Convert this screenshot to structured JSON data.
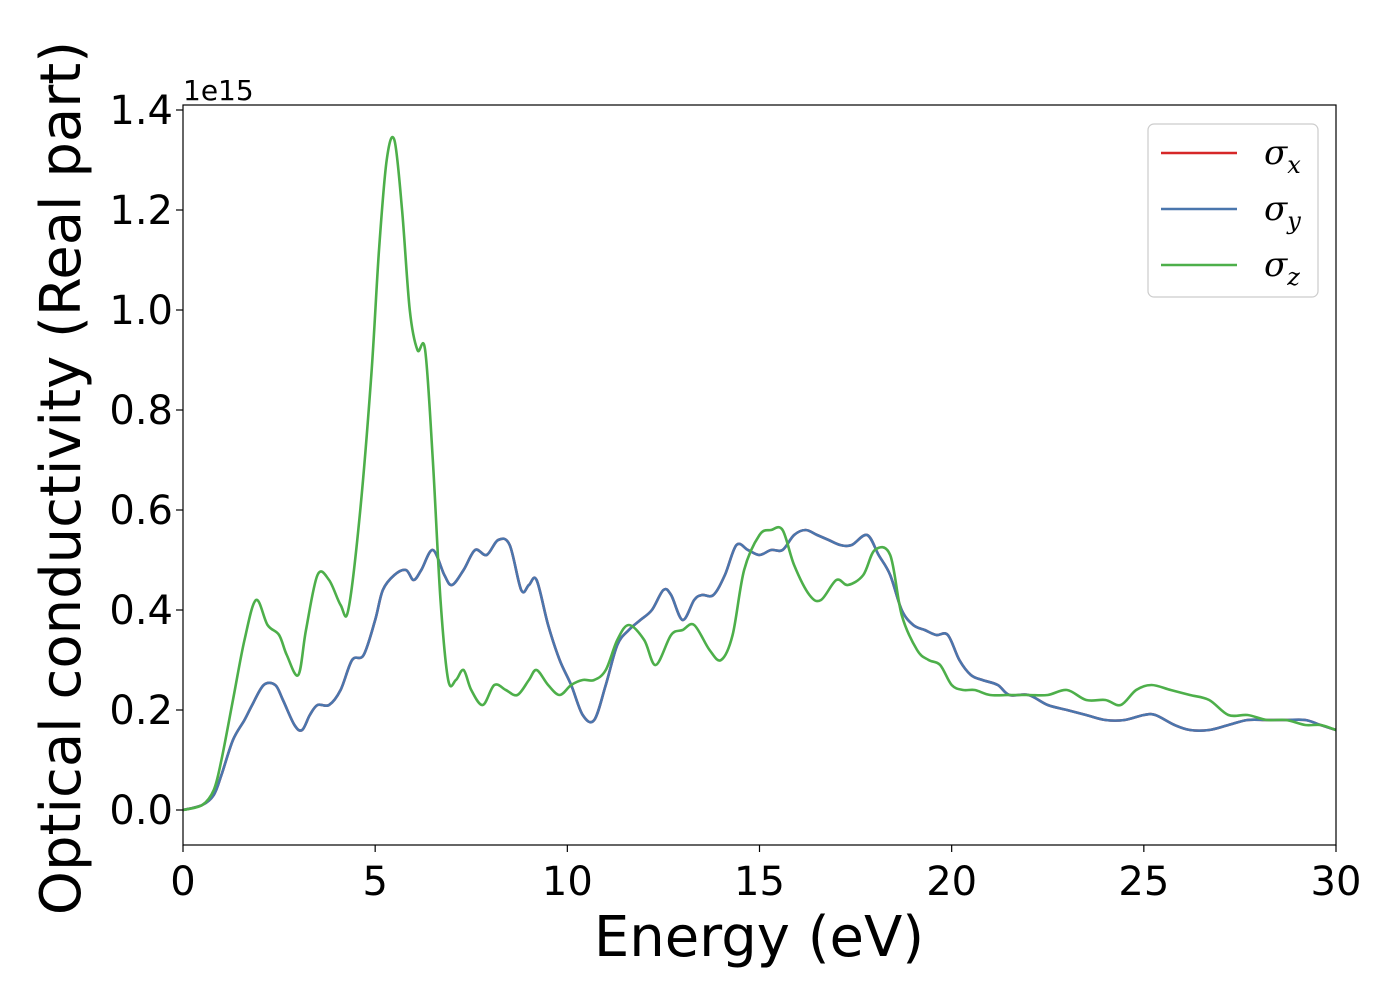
{
  "chart_data": {
    "type": "line",
    "xlabel": "Energy (eV)",
    "ylabel": "Optical conductivity (Real part)",
    "y_offset_label": "1e15",
    "xlim": [
      0,
      30
    ],
    "ylim": [
      -0.07,
      1.41
    ],
    "x_ticks": [
      0,
      5,
      10,
      15,
      20,
      25,
      30
    ],
    "x_tick_labels": [
      "0",
      "5",
      "10",
      "15",
      "20",
      "25",
      "30"
    ],
    "y_ticks": [
      0.0,
      0.2,
      0.4,
      0.6,
      0.8,
      1.0,
      1.2,
      1.4
    ],
    "y_tick_labels": [
      "0.0",
      "0.2",
      "0.4",
      "0.6",
      "0.8",
      "1.0",
      "1.2",
      "1.4"
    ],
    "grid": false,
    "legend_position": "top-right",
    "series": [
      {
        "name": "σx",
        "symbol": "σ",
        "subscript": "x",
        "color": "#d62728",
        "x": [
          0,
          0.5,
          0.8,
          1.0,
          1.3,
          1.6,
          1.8,
          2.1,
          2.4,
          2.6,
          2.9,
          3.1,
          3.3,
          3.5,
          3.8,
          4.1,
          4.4,
          4.7,
          5.0,
          5.2,
          5.5,
          5.8,
          6.0,
          6.2,
          6.5,
          6.8,
          7.0,
          7.3,
          7.6,
          7.9,
          8.2,
          8.5,
          8.8,
          9.0,
          9.2,
          9.5,
          9.8,
          10.1,
          10.4,
          10.7,
          11.0,
          11.3,
          11.6,
          11.9,
          12.2,
          12.5,
          12.7,
          13.0,
          13.3,
          13.5,
          13.8,
          14.1,
          14.4,
          14.7,
          15.0,
          15.3,
          15.6,
          15.9,
          16.2,
          16.5,
          16.8,
          17.1,
          17.4,
          17.8,
          18.1,
          18.4,
          18.7,
          19.0,
          19.3,
          19.6,
          19.9,
          20.2,
          20.5,
          20.8,
          21.2,
          21.5,
          22.0,
          22.5,
          23.0,
          23.5,
          24.0,
          24.5,
          25.0,
          25.3,
          25.8,
          26.2,
          26.7,
          27.2,
          27.7,
          28.2,
          28.7,
          29.2,
          29.6,
          30.0
        ],
        "y": [
          0.0,
          0.01,
          0.03,
          0.07,
          0.14,
          0.18,
          0.21,
          0.25,
          0.25,
          0.22,
          0.17,
          0.16,
          0.19,
          0.21,
          0.21,
          0.24,
          0.3,
          0.31,
          0.38,
          0.44,
          0.47,
          0.48,
          0.46,
          0.48,
          0.52,
          0.47,
          0.45,
          0.48,
          0.52,
          0.51,
          0.54,
          0.53,
          0.44,
          0.45,
          0.46,
          0.37,
          0.3,
          0.25,
          0.19,
          0.18,
          0.25,
          0.33,
          0.36,
          0.38,
          0.4,
          0.44,
          0.43,
          0.38,
          0.42,
          0.43,
          0.43,
          0.47,
          0.53,
          0.52,
          0.51,
          0.52,
          0.52,
          0.55,
          0.56,
          0.55,
          0.54,
          0.53,
          0.53,
          0.55,
          0.51,
          0.47,
          0.4,
          0.37,
          0.36,
          0.35,
          0.35,
          0.3,
          0.27,
          0.26,
          0.25,
          0.23,
          0.23,
          0.21,
          0.2,
          0.19,
          0.18,
          0.18,
          0.19,
          0.19,
          0.17,
          0.16,
          0.16,
          0.17,
          0.18,
          0.18,
          0.18,
          0.18,
          0.17,
          0.16
        ]
      },
      {
        "name": "σy",
        "symbol": "σ",
        "subscript": "y",
        "color": "#4a76ad",
        "x": [
          0,
          0.5,
          0.8,
          1.0,
          1.3,
          1.6,
          1.8,
          2.1,
          2.4,
          2.6,
          2.9,
          3.1,
          3.3,
          3.5,
          3.8,
          4.1,
          4.4,
          4.7,
          5.0,
          5.2,
          5.5,
          5.8,
          6.0,
          6.2,
          6.5,
          6.8,
          7.0,
          7.3,
          7.6,
          7.9,
          8.2,
          8.5,
          8.8,
          9.0,
          9.2,
          9.5,
          9.8,
          10.1,
          10.4,
          10.7,
          11.0,
          11.3,
          11.6,
          11.9,
          12.2,
          12.5,
          12.7,
          13.0,
          13.3,
          13.5,
          13.8,
          14.1,
          14.4,
          14.7,
          15.0,
          15.3,
          15.6,
          15.9,
          16.2,
          16.5,
          16.8,
          17.1,
          17.4,
          17.8,
          18.1,
          18.4,
          18.7,
          19.0,
          19.3,
          19.6,
          19.9,
          20.2,
          20.5,
          20.8,
          21.2,
          21.5,
          22.0,
          22.5,
          23.0,
          23.5,
          24.0,
          24.5,
          25.0,
          25.3,
          25.8,
          26.2,
          26.7,
          27.2,
          27.7,
          28.2,
          28.7,
          29.2,
          29.6,
          30.0
        ],
        "y": [
          0.0,
          0.01,
          0.03,
          0.07,
          0.14,
          0.18,
          0.21,
          0.25,
          0.25,
          0.22,
          0.17,
          0.16,
          0.19,
          0.21,
          0.21,
          0.24,
          0.3,
          0.31,
          0.38,
          0.44,
          0.47,
          0.48,
          0.46,
          0.48,
          0.52,
          0.47,
          0.45,
          0.48,
          0.52,
          0.51,
          0.54,
          0.53,
          0.44,
          0.45,
          0.46,
          0.37,
          0.3,
          0.25,
          0.19,
          0.18,
          0.25,
          0.33,
          0.36,
          0.38,
          0.4,
          0.44,
          0.43,
          0.38,
          0.42,
          0.43,
          0.43,
          0.47,
          0.53,
          0.52,
          0.51,
          0.52,
          0.52,
          0.55,
          0.56,
          0.55,
          0.54,
          0.53,
          0.53,
          0.55,
          0.51,
          0.47,
          0.4,
          0.37,
          0.36,
          0.35,
          0.35,
          0.3,
          0.27,
          0.26,
          0.25,
          0.23,
          0.23,
          0.21,
          0.2,
          0.19,
          0.18,
          0.18,
          0.19,
          0.19,
          0.17,
          0.16,
          0.16,
          0.17,
          0.18,
          0.18,
          0.18,
          0.18,
          0.17,
          0.16
        ]
      },
      {
        "name": "σz",
        "symbol": "σ",
        "subscript": "z",
        "color": "#4daf4a",
        "x": [
          0,
          0.5,
          0.8,
          1.0,
          1.3,
          1.6,
          1.9,
          2.2,
          2.5,
          2.7,
          3.0,
          3.2,
          3.5,
          3.8,
          4.1,
          4.3,
          4.6,
          4.9,
          5.1,
          5.3,
          5.5,
          5.7,
          5.9,
          6.1,
          6.3,
          6.5,
          6.7,
          6.9,
          7.1,
          7.3,
          7.5,
          7.8,
          8.1,
          8.4,
          8.7,
          9.0,
          9.2,
          9.5,
          9.8,
          10.1,
          10.4,
          10.7,
          11.0,
          11.3,
          11.6,
          12.0,
          12.3,
          12.7,
          13.0,
          13.3,
          13.7,
          14.0,
          14.3,
          14.6,
          15.0,
          15.3,
          15.6,
          15.9,
          16.3,
          16.6,
          17.0,
          17.3,
          17.7,
          18.0,
          18.4,
          18.7,
          19.1,
          19.4,
          19.7,
          20.0,
          20.3,
          20.6,
          21.0,
          21.5,
          22.0,
          22.5,
          23.0,
          23.5,
          24.0,
          24.4,
          24.8,
          25.2,
          25.7,
          26.2,
          26.7,
          27.2,
          27.7,
          28.2,
          28.7,
          29.2,
          29.6,
          30.0
        ],
        "y": [
          0.0,
          0.01,
          0.04,
          0.1,
          0.22,
          0.34,
          0.42,
          0.37,
          0.35,
          0.31,
          0.27,
          0.36,
          0.47,
          0.46,
          0.41,
          0.4,
          0.59,
          0.87,
          1.12,
          1.3,
          1.34,
          1.2,
          1.0,
          0.92,
          0.92,
          0.7,
          0.42,
          0.26,
          0.26,
          0.28,
          0.24,
          0.21,
          0.25,
          0.24,
          0.23,
          0.26,
          0.28,
          0.25,
          0.23,
          0.25,
          0.26,
          0.26,
          0.28,
          0.34,
          0.37,
          0.34,
          0.29,
          0.35,
          0.36,
          0.37,
          0.32,
          0.3,
          0.35,
          0.48,
          0.55,
          0.56,
          0.56,
          0.49,
          0.43,
          0.42,
          0.46,
          0.45,
          0.47,
          0.52,
          0.51,
          0.39,
          0.32,
          0.3,
          0.29,
          0.25,
          0.24,
          0.24,
          0.23,
          0.23,
          0.23,
          0.23,
          0.24,
          0.22,
          0.22,
          0.21,
          0.24,
          0.25,
          0.24,
          0.23,
          0.22,
          0.19,
          0.19,
          0.18,
          0.18,
          0.17,
          0.17,
          0.16
        ]
      }
    ]
  }
}
